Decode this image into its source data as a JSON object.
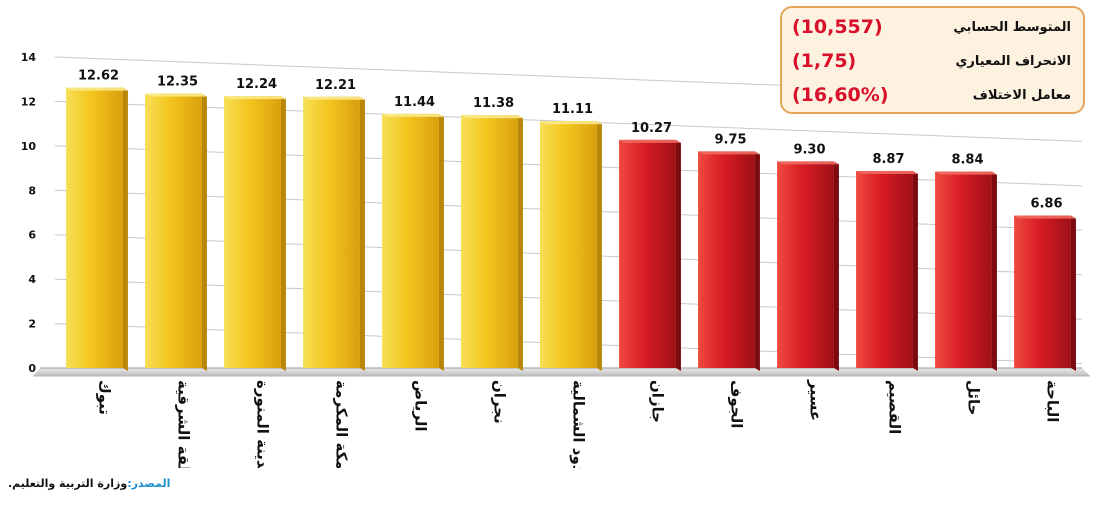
{
  "chart_data": {
    "type": "bar",
    "categories": [
      "تبوك",
      "المنطقة الشرقية",
      "المدينة المنورة",
      "مكة المكرمة",
      "الرياض",
      "نجران",
      "الحدود الشمالية",
      "جازان",
      "الجوف",
      "عسير",
      "القصيم",
      "حائل",
      "الباحة"
    ],
    "values": [
      12.62,
      12.35,
      12.24,
      12.21,
      11.44,
      11.38,
      11.11,
      10.27,
      9.75,
      9.3,
      8.87,
      8.84,
      6.86
    ],
    "value_labels": [
      "12.62",
      "12.35",
      "12.24",
      "12.21",
      "11.44",
      "11.38",
      "11.11",
      "10.27",
      "9.75",
      "9.30",
      "8.87",
      "8.84",
      "6.86"
    ],
    "ylim": [
      0,
      14
    ],
    "yticks": [
      "0",
      "2",
      "4",
      "6",
      "8",
      "10",
      "12",
      "14"
    ],
    "ytick_values": [
      0,
      2,
      4,
      6,
      8,
      10,
      12,
      14
    ],
    "grid": true,
    "colors": {
      "above_mean": "#f2c21a",
      "below_mean": "#d81c24"
    }
  },
  "stats": [
    {
      "label": "المتوسط الحسابي",
      "value": "(10,557)"
    },
    {
      "label": "الانحراف المعياري",
      "value": "(1,75)"
    },
    {
      "label": "معامل الاختلاف",
      "value": "(16,60%)"
    }
  ],
  "source": {
    "label": "المصدر:",
    "text": "وزارة التربية والتعليم."
  }
}
